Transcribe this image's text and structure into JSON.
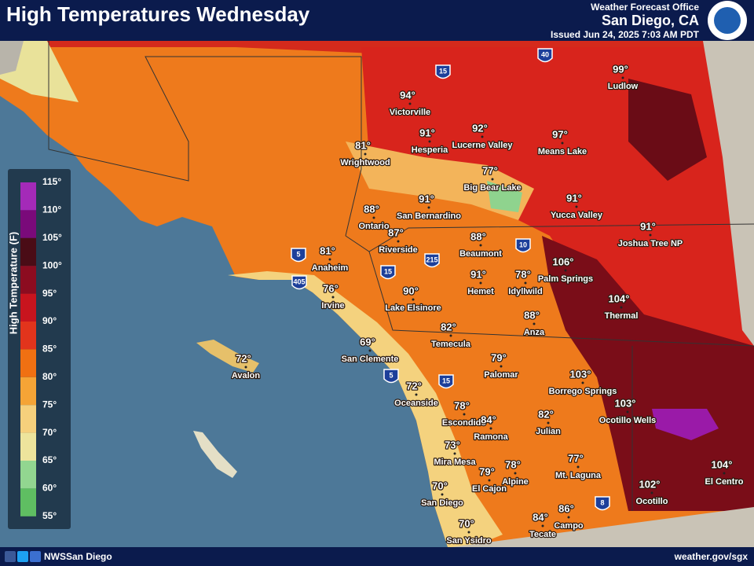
{
  "header": {
    "title": "High Temperatures Wednesday",
    "office_type": "Weather Forecast Office",
    "office": "San Diego, CA",
    "issued": "Issued Jun 24, 2025 7:03 AM PDT"
  },
  "legend": {
    "title": "High Temperature (F)",
    "ticks": [
      "115°",
      "110°",
      "105°",
      "100°",
      "95°",
      "90°",
      "85°",
      "80°",
      "75°",
      "70°",
      "65°",
      "60°",
      "55°"
    ]
  },
  "cities": [
    {
      "name": "Ludlow",
      "temp": "99°"
    },
    {
      "name": "Victorville",
      "temp": "94°"
    },
    {
      "name": "Hesperia",
      "temp": "91°"
    },
    {
      "name": "Lucerne Valley",
      "temp": "92°"
    },
    {
      "name": "Means Lake",
      "temp": "97°"
    },
    {
      "name": "Wrightwood",
      "temp": "81°"
    },
    {
      "name": "Big Bear Lake",
      "temp": "77°"
    },
    {
      "name": "Ontario",
      "temp": "88°"
    },
    {
      "name": "San Bernardino",
      "temp": "91°"
    },
    {
      "name": "Yucca Valley",
      "temp": "91°"
    },
    {
      "name": "Riverside",
      "temp": "87°"
    },
    {
      "name": "Beaumont",
      "temp": "88°"
    },
    {
      "name": "Joshua Tree NP",
      "temp": "91°"
    },
    {
      "name": "Anaheim",
      "temp": "81°"
    },
    {
      "name": "Palm Springs",
      "temp": "106°"
    },
    {
      "name": "Idyllwild",
      "temp": "78°"
    },
    {
      "name": "Hemet",
      "temp": "91°"
    },
    {
      "name": "Irvine",
      "temp": "76°"
    },
    {
      "name": "Lake Elsinore",
      "temp": "90°"
    },
    {
      "name": "Thermal",
      "temp": "104°"
    },
    {
      "name": "Anza",
      "temp": "88°"
    },
    {
      "name": "Temecula",
      "temp": "82°"
    },
    {
      "name": "San Clemente",
      "temp": "69°"
    },
    {
      "name": "Avalon",
      "temp": "72°"
    },
    {
      "name": "Palomar",
      "temp": "79°"
    },
    {
      "name": "Borrego Springs",
      "temp": "103°"
    },
    {
      "name": "Oceanside",
      "temp": "72°"
    },
    {
      "name": "Ocotillo Wells",
      "temp": "103°"
    },
    {
      "name": "Escondido",
      "temp": "78°"
    },
    {
      "name": "Ramona",
      "temp": "84°"
    },
    {
      "name": "Julian",
      "temp": "82°"
    },
    {
      "name": "Mira Mesa",
      "temp": "73°"
    },
    {
      "name": "Alpine",
      "temp": "78°"
    },
    {
      "name": "Mt. Laguna",
      "temp": "77°"
    },
    {
      "name": "El Cajon",
      "temp": "79°"
    },
    {
      "name": "El Centro",
      "temp": "104°"
    },
    {
      "name": "San Diego",
      "temp": "70°"
    },
    {
      "name": "Ocotillo",
      "temp": "102°"
    },
    {
      "name": "Tecate",
      "temp": "84°"
    },
    {
      "name": "Campo",
      "temp": "86°"
    },
    {
      "name": "San Ysidro",
      "temp": "70°"
    }
  ],
  "interstates": [
    "40",
    "15",
    "5",
    "405",
    "10",
    "215",
    "15",
    "5",
    "15",
    "8"
  ],
  "footer": {
    "social": "NWSSan Diego",
    "website": "weather.gov/sgx"
  }
}
